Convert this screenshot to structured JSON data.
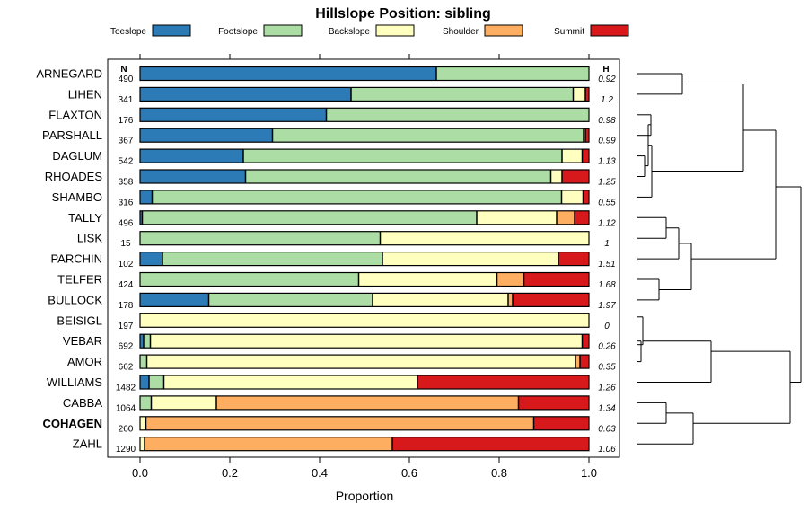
{
  "chart_data": {
    "type": "bar",
    "orientation": "horizontal-stacked",
    "title": "Hillslope Position: sibling",
    "xlabel": "Proportion",
    "xlim": [
      0,
      1
    ],
    "xticks": [
      0.0,
      0.2,
      0.4,
      0.6,
      0.8,
      1.0
    ],
    "xtick_labels": [
      "0.0",
      "0.2",
      "0.4",
      "0.6",
      "0.8",
      "1.0"
    ],
    "n_header": "N",
    "h_header": "H",
    "legend": [
      {
        "name": "Toeslope",
        "color": "#2c7bb6"
      },
      {
        "name": "Footslope",
        "color": "#abdda4"
      },
      {
        "name": "Backslope",
        "color": "#ffffbf"
      },
      {
        "name": "Shoulder",
        "color": "#fdae61"
      },
      {
        "name": "Summit",
        "color": "#d7191c"
      }
    ],
    "bold_category": "COHAGEN",
    "categories": [
      "ARNEGARD",
      "LIHEN",
      "FLAXTON",
      "PARSHALL",
      "DAGLUM",
      "RHOADES",
      "SHAMBO",
      "TALLY",
      "LISK",
      "PARCHIN",
      "TELFER",
      "BULLOCK",
      "BEISIGL",
      "VEBAR",
      "AMOR",
      "WILLIAMS",
      "CABBA",
      "COHAGEN",
      "ZAHL"
    ],
    "n": [
      "490",
      "341",
      "176",
      "367",
      "542",
      "358",
      "316",
      "496",
      "15",
      "102",
      "424",
      "178",
      "197",
      "692",
      "662",
      "1482",
      "1064",
      "260",
      "1290"
    ],
    "h": [
      "0.92",
      "1.2",
      "0.98",
      "0.99",
      "1.13",
      "1.25",
      "0.55",
      "1.12",
      "1",
      "1.51",
      "1.68",
      "1.97",
      "0",
      "0.26",
      "0.35",
      "1.26",
      "1.34",
      "0.63",
      "1.06"
    ],
    "series": [
      {
        "name": "Toeslope",
        "values": [
          0.66,
          0.47,
          0.415,
          0.295,
          0.23,
          0.235,
          0.027,
          0.005,
          0,
          0.05,
          0,
          0.153,
          0,
          0.008,
          0,
          0.02,
          0,
          0,
          0
        ]
      },
      {
        "name": "Footslope",
        "values": [
          0.34,
          0.495,
          0.585,
          0.693,
          0.71,
          0.68,
          0.912,
          0.745,
          0.535,
          0.49,
          0.487,
          0.365,
          0,
          0.015,
          0.015,
          0.033,
          0.025,
          0,
          0
        ]
      },
      {
        "name": "Backslope",
        "values": [
          0,
          0.027,
          0,
          0.004,
          0.045,
          0.025,
          0.048,
          0.178,
          0.465,
          0.392,
          0.308,
          0.302,
          1,
          0.962,
          0.955,
          0.565,
          0.145,
          0.013,
          0.01
        ]
      },
      {
        "name": "Shoulder",
        "values": [
          0,
          0,
          0,
          0,
          0,
          0,
          0,
          0.04,
          0,
          0,
          0.06,
          0.01,
          0,
          0,
          0.01,
          0,
          0.673,
          0.864,
          0.552
        ]
      },
      {
        "name": "Summit",
        "values": [
          0,
          0.008,
          0,
          0.008,
          0.015,
          0.06,
          0.013,
          0.032,
          0,
          0.068,
          0.145,
          0.17,
          0,
          0.015,
          0.02,
          0.382,
          0.157,
          0.123,
          0.438
        ]
      }
    ],
    "dendrogram": {
      "method": "hierarchical clustering of categories",
      "merges": [
        {
          "a": "ARNEGARD",
          "b": "LIHEN",
          "height": 0.15
        },
        {
          "a": "FLAXTON",
          "b": "PARSHALL",
          "height": 0.03
        },
        {
          "a": "DAGLUM",
          "b": "RHOADES",
          "height": 0.05
        },
        {
          "a": "DAGLUM+RHOADES",
          "b": "FLAXTON+PARSHALL",
          "height": 0.07
        },
        {
          "a": "TALLY",
          "b": "LISK",
          "height": 0.08
        },
        {
          "a": "TALLY+LISK",
          "b": "PARCHIN",
          "height": 0.12
        },
        {
          "a": "TELFER",
          "b": "BULLOCK",
          "height": 0.13
        },
        {
          "a": "TALLY+LISK+PARCHIN",
          "b": "TELFER+BULLOCK",
          "height": 0.18
        },
        {
          "a": "BEISIGL",
          "b": "VEBAR",
          "height": 0.02
        },
        {
          "a": "VEBAR",
          "b": "AMOR",
          "height": 0.01
        }
      ]
    }
  }
}
